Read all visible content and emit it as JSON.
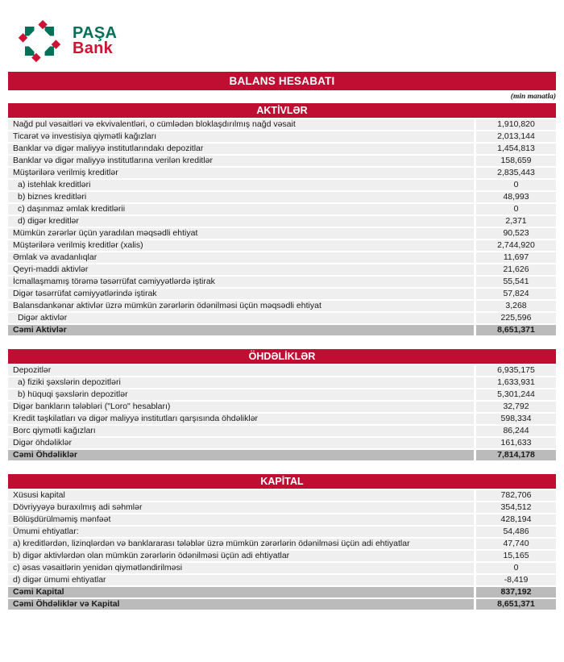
{
  "logo": {
    "name_top": "PAŞA",
    "name_bottom": "Bank",
    "green": "#037157",
    "red": "#CE1233",
    "icon": "pinwheel-diamond-mosaic"
  },
  "title_band": "BALANS HESABATI",
  "unit_note": "(min manatla)",
  "colors": {
    "band_red": "#C00E33",
    "row_bg": "#EFEFEF",
    "total_row_bg": "#BBBBBB",
    "text": "#1A1A1A"
  },
  "sections": [
    {
      "header": "AKTİVLƏR",
      "rows": [
        {
          "label": "Nağd pul vəsaitləri və ekvivalentləri, o cümlədən bloklaşdırılmış nağd vəsait",
          "value": "1,910,820",
          "indent": false
        },
        {
          "label": "Ticarət və investisiya qiymətli kağızları",
          "value": "2,013,144",
          "indent": false
        },
        {
          "label": "Banklar və digər maliyyə institutlarındakı depozitlar",
          "value": "1,454,813",
          "indent": false
        },
        {
          "label": "Banklar və digər maliyyə institutlarına verilən kreditlər",
          "value": "158,659",
          "indent": false
        },
        {
          "label": "Müştərilərə verilmiş kreditlər",
          "value": "2,835,443",
          "indent": false
        },
        {
          "label": "a) istehlak kreditləri",
          "value": "0",
          "indent": true
        },
        {
          "label": "b) biznes kreditləri",
          "value": "48,993",
          "indent": true
        },
        {
          "label": "c) daşınmaz əmlak kreditlərii",
          "value": "0",
          "indent": true
        },
        {
          "label": "d) digər kreditlər",
          "value": "2,371",
          "indent": true
        },
        {
          "label": "Mümkün zərərlər üçün yaradılan məqsədli ehtiyat",
          "value": "90,523",
          "indent": false
        },
        {
          "label": "Müştərilərə verilmiş kreditlər (xalis)",
          "value": "2,744,920",
          "indent": false
        },
        {
          "label": "Əmlak və avadanlıqlar",
          "value": "11,697",
          "indent": false
        },
        {
          "label": "Qeyri-maddi aktivlər",
          "value": "21,626",
          "indent": false
        },
        {
          "label": "İcmallaşmamış törəmə təsərrüfat cəmiyyətlərdə iştirak",
          "value": "55,541",
          "indent": false
        },
        {
          "label": "Digər təsərrüfat cəmiyyətlərində iştirak",
          "value": "57,824",
          "indent": false
        },
        {
          "label": "Balansdankənar aktivlər üzrə mümkün zərərlərin ödənilməsi üçün məqsədli ehtiyat",
          "value": "3,268",
          "indent": false
        },
        {
          "label": "Digər aktivlər",
          "value": "225,596",
          "indent": true
        }
      ],
      "totals": [
        {
          "label": "Cəmi Aktivlər",
          "value": "8,651,371"
        }
      ]
    },
    {
      "header": "ÖHDƏLİKLƏR",
      "rows": [
        {
          "label": "Depozitlər",
          "value": "6,935,175",
          "indent": false
        },
        {
          "label": "a) fiziki şəxslərin depozitləri",
          "value": "1,633,931",
          "indent": true
        },
        {
          "label": "b) hüquqi şəxslərin depozitlər",
          "value": "5,301,244",
          "indent": true
        },
        {
          "label": "Digər bankların tələbləri (\"Loro\" hesabları)",
          "value": "32,792",
          "indent": false
        },
        {
          "label": "Kredit təşkilatları və digər maliyyə institutları qarşısında öhdəliklər",
          "value": "598,334",
          "indent": false
        },
        {
          "label": "Borc qiymətli kağızları",
          "value": "86,244",
          "indent": false
        },
        {
          "label": "Digər öhdəliklər",
          "value": "161,633",
          "indent": false
        }
      ],
      "totals": [
        {
          "label": "Cəmi Öhdəliklər",
          "value": "7,814,178"
        }
      ]
    },
    {
      "header": "KAPİTAL",
      "rows": [
        {
          "label": "Xüsusi kapital",
          "value": "782,706",
          "indent": false
        },
        {
          "label": "Dövriyyəyə buraxılmış adi səhmlər",
          "value": "354,512",
          "indent": false
        },
        {
          "label": "Bölüşdürülməmiş mənfəət",
          "value": "428,194",
          "indent": false
        },
        {
          "label": "Ümumi ehtiyatlar:",
          "value": "54,486",
          "indent": false
        },
        {
          "label": "a) kreditlərdən, lizinqlərdən və banklararası  tələblər üzrə mümkün zərərlərin ödənilməsi üçün adi ehtiyatlar",
          "value": "47,740",
          "indent": false
        },
        {
          "label": "b) digər aktivlərdən olan mümkün zərərlərin ödənilməsi üçün adi ehtiyatlar",
          "value": "15,165",
          "indent": false
        },
        {
          "label": "c) əsas vəsaitlərin yenidən qiymətləndirilməsi",
          "value": "0",
          "indent": false
        },
        {
          "label": "d) digər ümumi ehtiyatlar",
          "value": "-8,419",
          "indent": false
        }
      ],
      "totals": [
        {
          "label": "Cəmi Kapital",
          "value": "837,192"
        },
        {
          "label": "Cəmi Öhdəliklər və Kapital",
          "value": "8,651,371"
        }
      ]
    }
  ]
}
